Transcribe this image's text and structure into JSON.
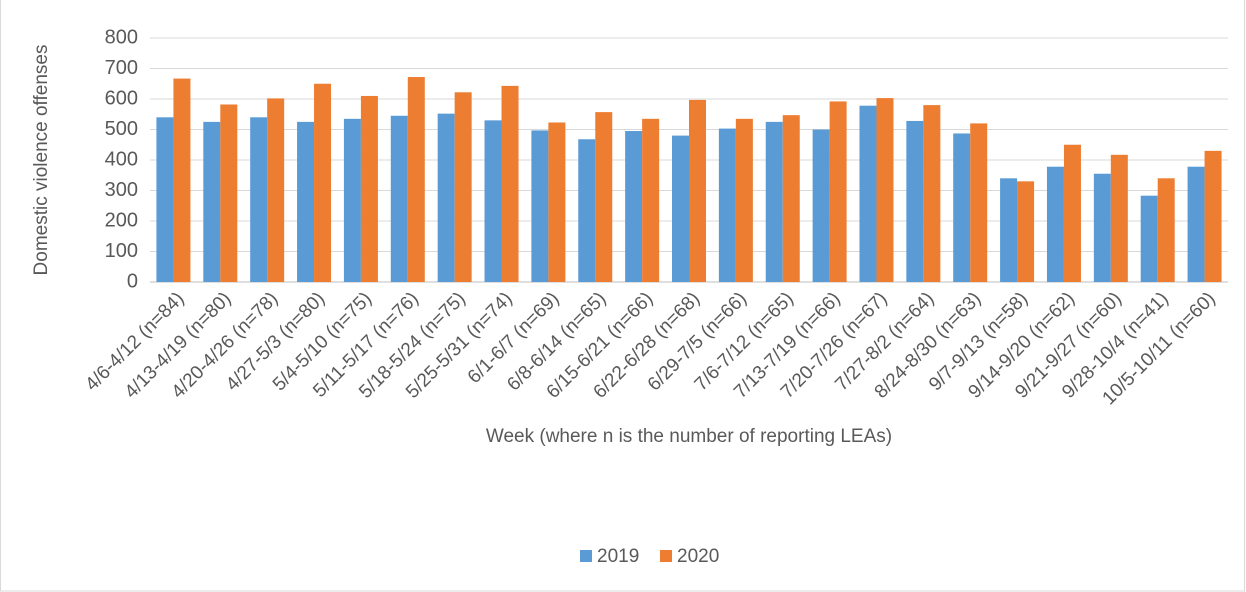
{
  "chart_data": {
    "type": "bar",
    "y_label": "Domestic violence offenses",
    "x_label": "Week (where n is the number of reporting LEAs)",
    "categories": [
      "4/6-4/12 (n=84)",
      "4/13-4/19 (n=80)",
      "4/20-4/26 (n=78)",
      "4/27-5/3 (n=80)",
      "5/4-5/10 (n=75)",
      "5/11-5/17 (n=76)",
      "5/18-5/24 (n=75)",
      "5/25-5/31 (n=74)",
      "6/1-6/7 (n=69)",
      "6/8-6/14 (n=65)",
      "6/15-6/21 (n=66)",
      "6/22-6/28 (n=68)",
      "6/29-7/5 (n=66)",
      "7/6-7/12 (n=65)",
      "7/13-7/19 (n=66)",
      "7/20-7/26 (n=67)",
      "7/27-8/2 (n=64)",
      "8/24-8/30 (n=63)",
      "9/7-9/13 (n=58)",
      "9/14-9/20 (n=62)",
      "9/21-9/27 (n=60)",
      "9/28-10/4 (n=41)",
      "10/5-10/11 (n=60)"
    ],
    "series": [
      {
        "name": "2019",
        "color": "#5b9bd5",
        "values": [
          540,
          525,
          540,
          525,
          535,
          545,
          552,
          530,
          497,
          468,
          495,
          480,
          503,
          525,
          500,
          578,
          528,
          487,
          340,
          378,
          355,
          283,
          378
        ]
      },
      {
        "name": "2020",
        "color": "#ed7d31",
        "values": [
          667,
          582,
          602,
          650,
          610,
          672,
          622,
          643,
          523,
          557,
          535,
          597,
          535,
          547,
          592,
          603,
          580,
          520,
          330,
          450,
          417,
          340,
          430
        ]
      }
    ],
    "ylim": [
      0,
      800
    ],
    "yticks": [
      0,
      100,
      200,
      300,
      400,
      500,
      600,
      700,
      800
    ],
    "grid": true,
    "legend": "bottom"
  }
}
